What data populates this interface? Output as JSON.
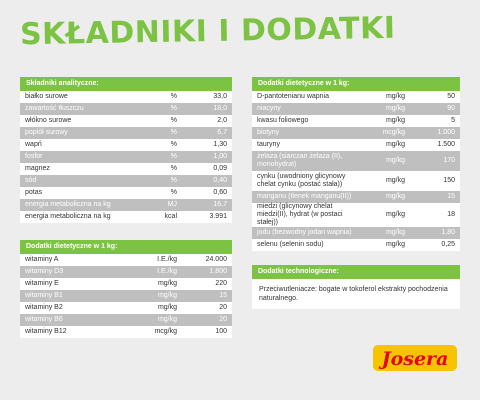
{
  "title": "SKŁADNIKI I DODATKI",
  "analytic": {
    "header": "Składniki analityczne:",
    "rows": [
      {
        "name": "białko surowe",
        "unit": "%",
        "value": "33,0"
      },
      {
        "name": "zawartość tłuszczu",
        "unit": "%",
        "value": "18,0"
      },
      {
        "name": "włókno surowe",
        "unit": "%",
        "value": "2,0"
      },
      {
        "name": "popiół surowy",
        "unit": "%",
        "value": "6,7"
      },
      {
        "name": "wapń",
        "unit": "%",
        "value": "1,30"
      },
      {
        "name": "fosfor",
        "unit": "%",
        "value": "1,00"
      },
      {
        "name": "magnez",
        "unit": "%",
        "value": "0,09"
      },
      {
        "name": "sód",
        "unit": "%",
        "value": "0,40"
      },
      {
        "name": "potas",
        "unit": "%",
        "value": "0,60"
      },
      {
        "name": "energia metaboliczna na kg",
        "unit": "MJ",
        "value": "16,7"
      },
      {
        "name": "energia metaboliczna na kg",
        "unit": "kcal",
        "value": "3.991"
      }
    ]
  },
  "dietetic_left": {
    "header": "Dodatki dietetyczne w 1 kg:",
    "rows": [
      {
        "name": "witaminy A",
        "unit": "I.E./kg",
        "value": "24.000"
      },
      {
        "name": "witaminy D3",
        "unit": "I.E./kg",
        "value": "1.800"
      },
      {
        "name": "witaminy E",
        "unit": "mg/kg",
        "value": "220"
      },
      {
        "name": "witaminy B1",
        "unit": "mg/kg",
        "value": "15"
      },
      {
        "name": "witaminy B2",
        "unit": "mg/kg",
        "value": "20"
      },
      {
        "name": "witaminy B6",
        "unit": "mg/kg",
        "value": "20"
      },
      {
        "name": "witaminy B12",
        "unit": "mcg/kg",
        "value": "100"
      }
    ]
  },
  "dietetic_right": {
    "header": "Dodatki dietetyczne w 1 kg:",
    "rows": [
      {
        "name": "D-pantotenianu wapnia",
        "unit": "mg/kg",
        "value": "50"
      },
      {
        "name": "niacyny",
        "unit": "mg/kg",
        "value": "90"
      },
      {
        "name": "kwasu foliowego",
        "unit": "mg/kg",
        "value": "5"
      },
      {
        "name": "biotyny",
        "unit": "mcg/kg",
        "value": "1.000"
      },
      {
        "name": "tauryny",
        "unit": "mg/kg",
        "value": "1.500"
      },
      {
        "name": "żelaza (siarczan żelaza (II), monohydrat)",
        "unit": "mg/kg",
        "value": "170"
      },
      {
        "name": "cynku (uwodniony glicynowy chelat cynku (postać stała))",
        "unit": "mg/kg",
        "value": "150"
      },
      {
        "name": "manganu (tlenek manganu(II))",
        "unit": "mg/kg",
        "value": "15"
      },
      {
        "name": "miedzi (glicynowy chelat miedzi(II), hydrat (w postaci stałej))",
        "unit": "mg/kg",
        "value": "18"
      },
      {
        "name": "jodu (bezwodny jodan wapnia)",
        "unit": "mg/kg",
        "value": "1,80"
      },
      {
        "name": "selenu (selenin sodu)",
        "unit": "mg/kg",
        "value": "0,25"
      }
    ]
  },
  "technological": {
    "header": "Dodatki technologiczne:",
    "text": "Przeciwutleniacze: bogate w tokoferol ekstrakty pochodzenia naturalnego."
  },
  "logo": {
    "text": "Josera",
    "color": "#e30613",
    "frame_color": "#f6c400"
  }
}
